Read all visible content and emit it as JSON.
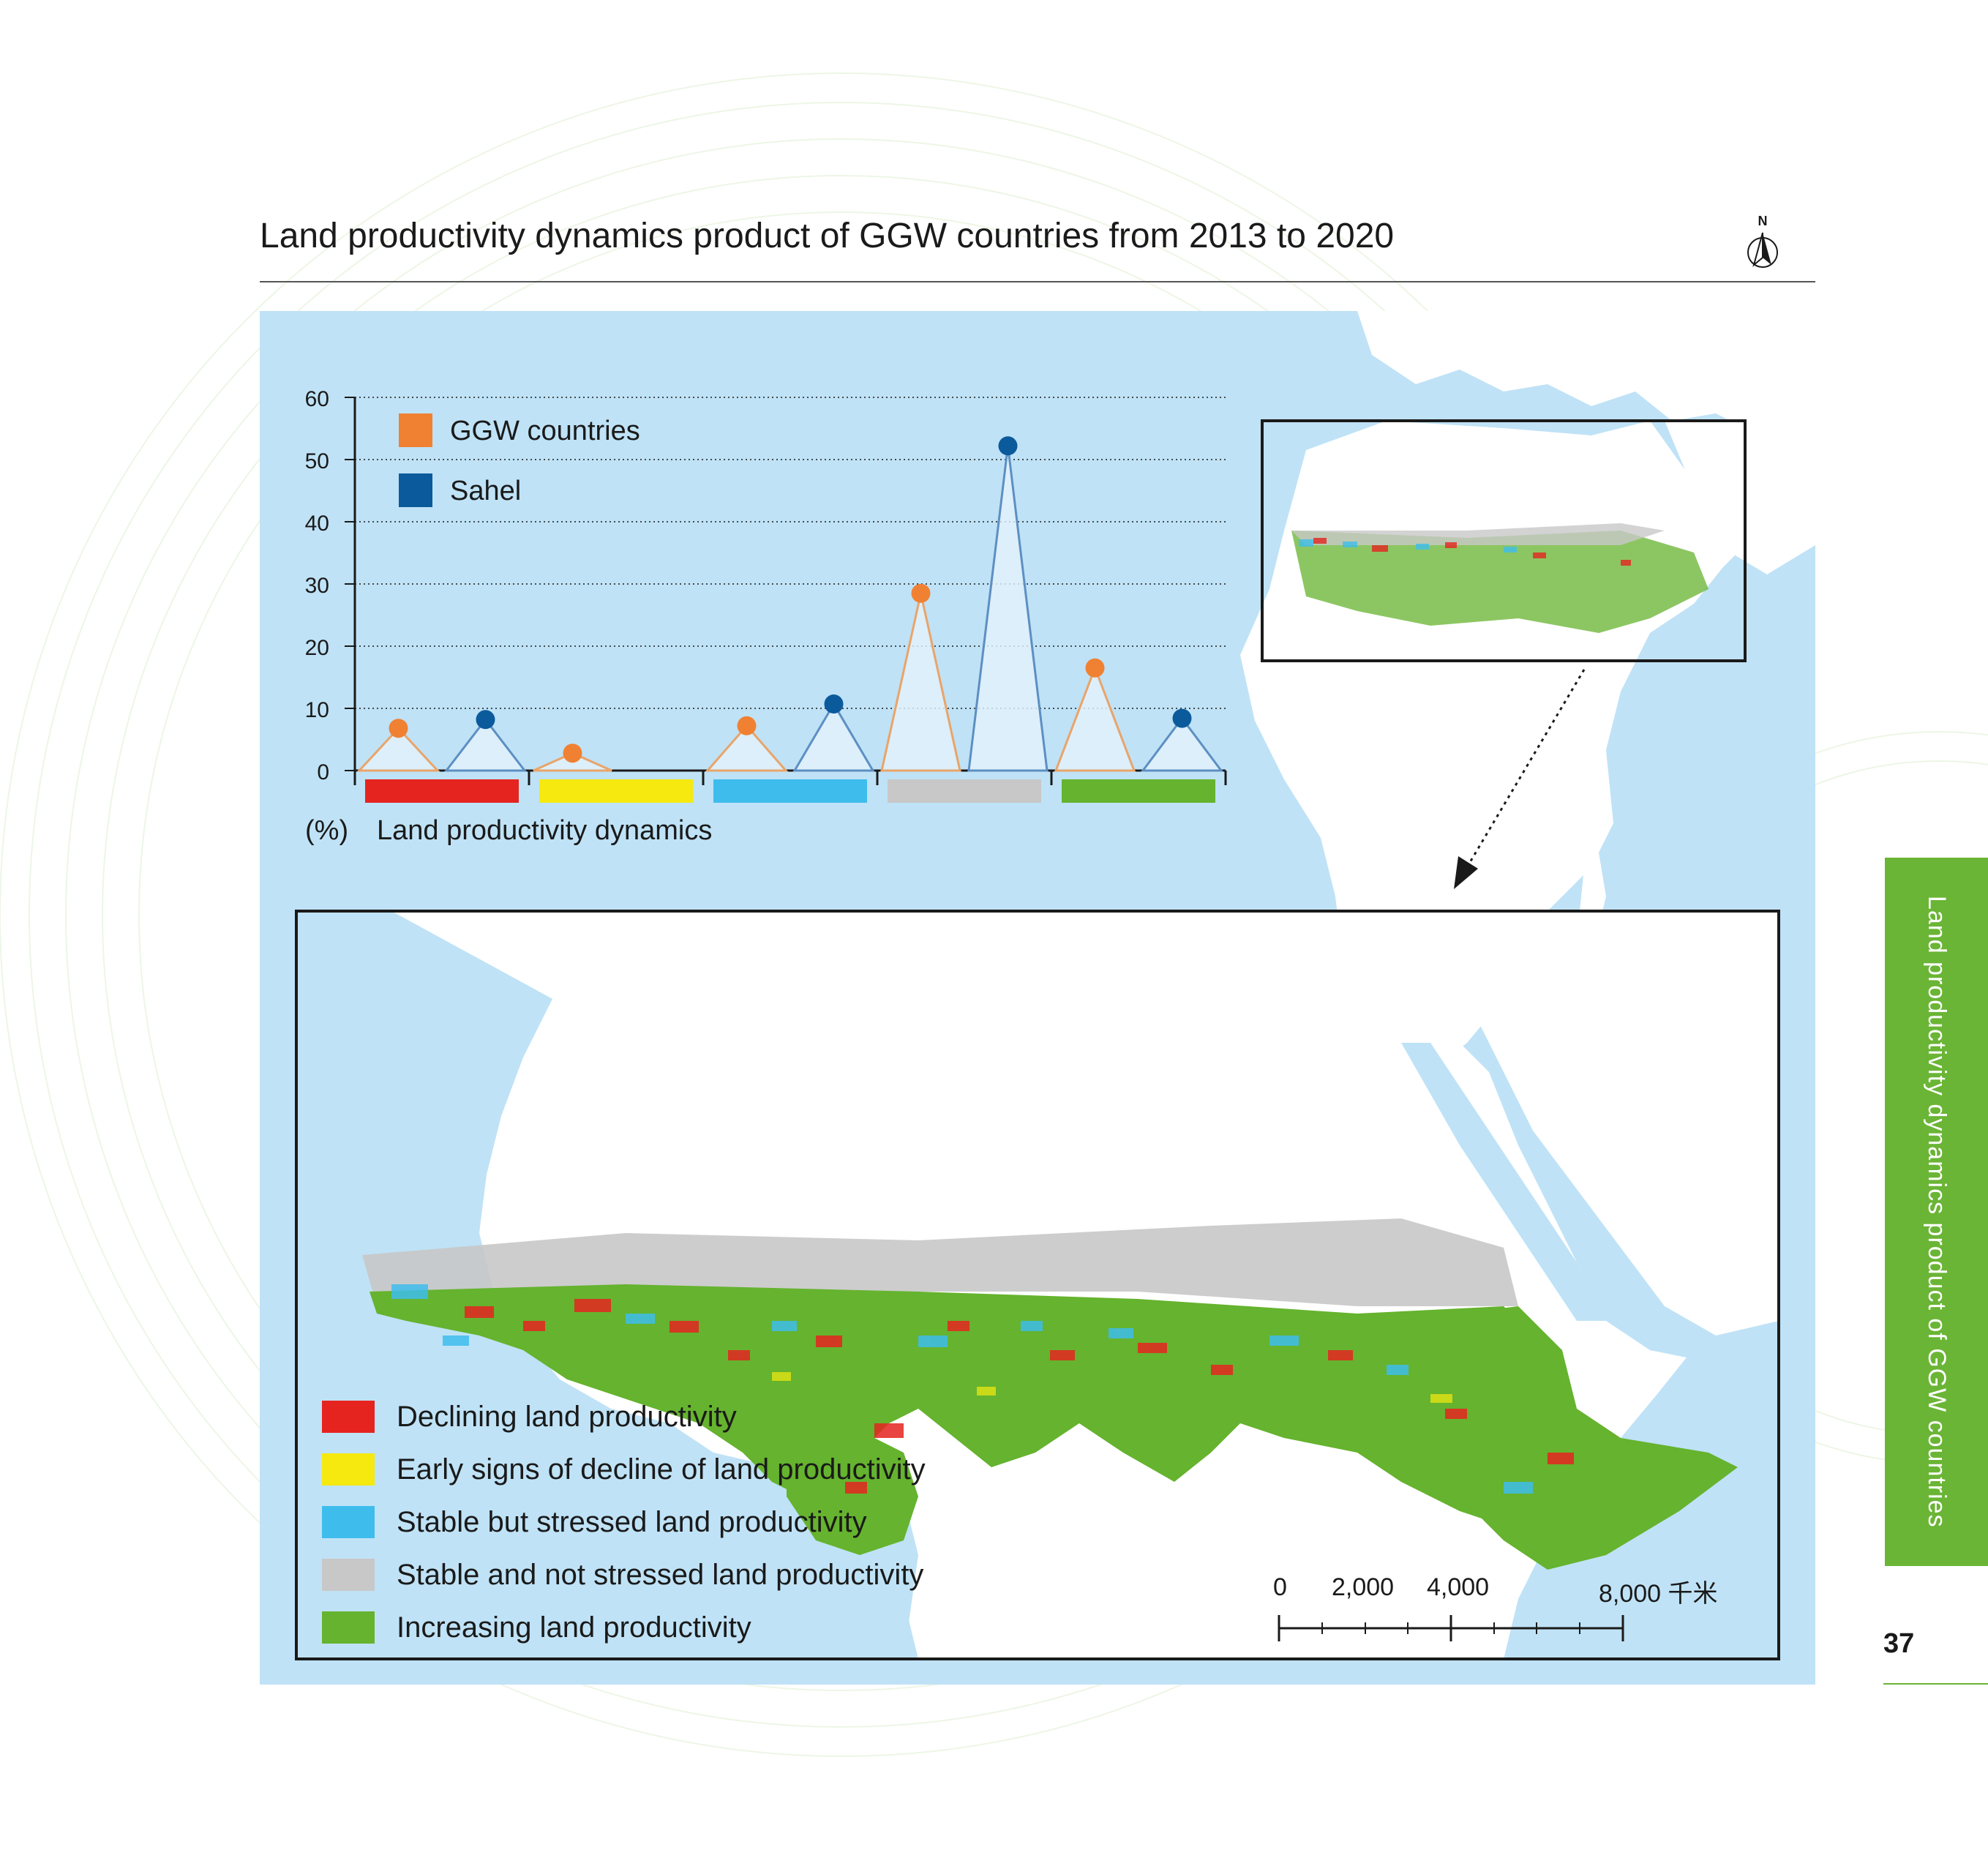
{
  "title": "Land productivity dynamics product of GGW countries from 2013 to 2020",
  "north_label": "N",
  "chart_data": {
    "type": "line",
    "categories": [
      "Declining land productivity",
      "Early signs of decline of land productivity",
      "Stable but stressed land productivity",
      "Stable and not stressed land productivity",
      "Increasing land productivity"
    ],
    "category_colors": [
      "#e52420",
      "#f5e90f",
      "#3ebdec",
      "#c8c8c8",
      "#65b32e"
    ],
    "series": [
      {
        "name": "GGW countries",
        "color": "#f08133",
        "values": [
          6.8,
          2.8,
          7.2,
          28.5,
          16.5
        ]
      },
      {
        "name": "Sahel",
        "color": "#0b5a9c",
        "values": [
          8.2,
          0,
          10.7,
          52.2,
          8.4
        ]
      }
    ],
    "ylim": [
      0,
      60
    ],
    "yticks": [
      "0",
      "10",
      "20",
      "30",
      "40",
      "50",
      "60"
    ],
    "ylabel": "(%)",
    "xlabel": "Land productivity dynamics",
    "grid": true
  },
  "legend": [
    {
      "label": "Declining land productivity",
      "color": "#e52420"
    },
    {
      "label": "Early signs of decline of land productivity",
      "color": "#f5e90f"
    },
    {
      "label": "Stable but stressed land productivity",
      "color": "#3ebdec"
    },
    {
      "label": "Stable and not stressed land productivity",
      "color": "#c8c8c8"
    },
    {
      "label": "Increasing land productivity",
      "color": "#65b32e"
    }
  ],
  "scale_bar": {
    "labels": [
      "0",
      "2,000",
      "4,000",
      "8,000 千米"
    ]
  },
  "side_tab": "Land productivity dynamics product of GGW countries",
  "page_number": "37",
  "colors": {
    "water": "#bfe2f6",
    "land": "#ffffff",
    "accent": "#6ab535"
  }
}
